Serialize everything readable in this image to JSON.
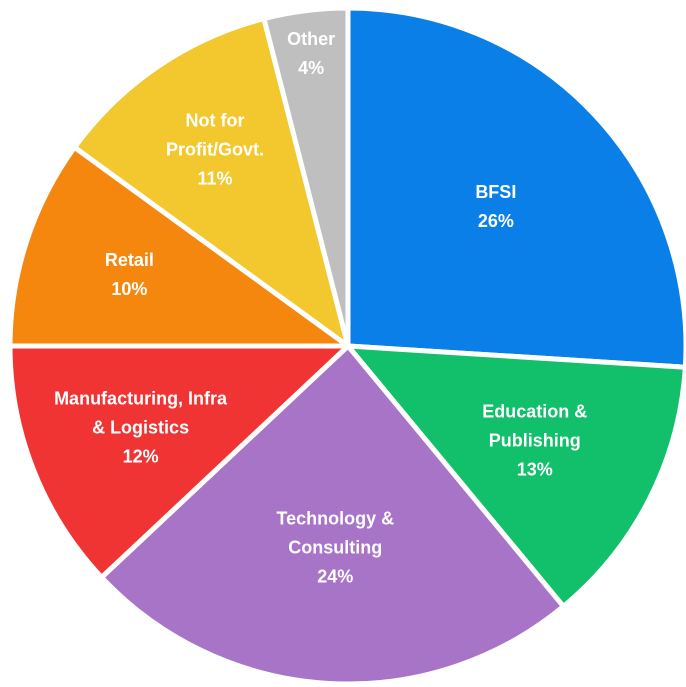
{
  "chart_data": {
    "type": "pie",
    "categories": [
      "BFSI",
      "Education & Publishing",
      "Technology & Consulting",
      "Manufacturing, Infra & Logistics",
      "Retail",
      "Not for Profit/Govt.",
      "Other"
    ],
    "values": [
      26,
      13,
      24,
      12,
      10,
      11,
      4
    ],
    "value_labels": [
      "26%",
      "13%",
      "24%",
      "12%",
      "10%",
      "11%",
      "4%"
    ],
    "colors": [
      "#0a7fe8",
      "#12bf6a",
      "#a874c8",
      "#f03434",
      "#f5870f",
      "#f2c82e",
      "#bfbfbf"
    ]
  }
}
